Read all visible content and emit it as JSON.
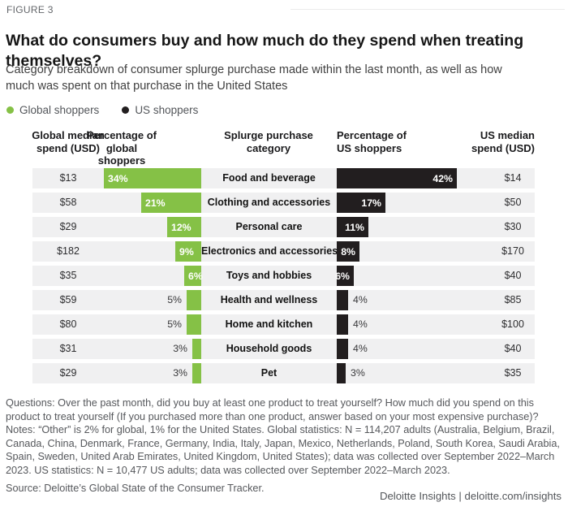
{
  "figure_label": "FIGURE 3",
  "title": "What do consumers buy and how much do they spend when treating themselves?",
  "subtitle": "Category breakdown of consumer splurge purchase made within the last month, as well as how much was spent on that purchase in the United States",
  "legend": {
    "items": [
      {
        "label": "Global shoppers",
        "color": "#85c146"
      },
      {
        "label": "US shoppers",
        "color": "#221e1f"
      }
    ]
  },
  "columns": {
    "global_spend": "Global median spend (USD)",
    "global_pct": "Percentage of global shoppers",
    "category": "Splurge purchase category",
    "us_pct": "Percentage of US shoppers",
    "us_spend": "US median spend (USD)"
  },
  "chart_data": {
    "type": "bar",
    "variant": "horizontal-butterfly",
    "title": "What do consumers buy and how much do they spend when treating themselves?",
    "categories": [
      "Food and beverage",
      "Clothing and accessories",
      "Personal care",
      "Electronics and accessories",
      "Toys and hobbies",
      "Health and wellness",
      "Home and kitchen",
      "Household goods",
      "Pet"
    ],
    "series": [
      {
        "name": "Global shoppers",
        "unit": "percent of shoppers",
        "color": "#85c146",
        "direction": "left",
        "values": [
          34,
          21,
          12,
          9,
          6,
          5,
          5,
          3,
          3
        ]
      },
      {
        "name": "US shoppers",
        "unit": "percent of shoppers",
        "color": "#221e1f",
        "direction": "right",
        "values": [
          42,
          17,
          11,
          8,
          6,
          4,
          4,
          4,
          3
        ]
      }
    ],
    "global_median_spend_usd": [
      "$13",
      "$58",
      "$29",
      "$182",
      "$35",
      "$59",
      "$80",
      "$31",
      "$29"
    ],
    "us_median_spend_usd": [
      "$14",
      "$50",
      "$30",
      "$170",
      "$40",
      "$85",
      "$100",
      "$40",
      "$35"
    ],
    "value_label_format": "{value}%",
    "value_labels_inside_threshold": 6,
    "grid": false,
    "axis_shown": false,
    "legend_position": "top-left"
  },
  "footer": {
    "questions": "Questions: Over the past month, did you buy at least one product to treat yourself? How much did you spend on this product to treat yourself (If you purchased more than one product, answer based on your most expensive purchase)?",
    "notes": "Notes: “Other” is 2% for global, 1% for the United States. Global statistics: N = 114,207 adults (Australia, Belgium, Brazil, Canada, China, Denmark, France, Germany, India, Italy, Japan, Mexico, Netherlands, Poland, South Korea, Saudi Arabia, Spain, Sweden, United Arab Emirates, United Kingdom, United States); data was collected over September 2022–March 2023. US statistics: N = 10,477 US adults; data was collected over September 2022–March 2023.",
    "source": "Source: Deloitte’s Global State of the Consumer Tracker."
  },
  "brand": "Deloitte Insights | deloitte.com/insights"
}
